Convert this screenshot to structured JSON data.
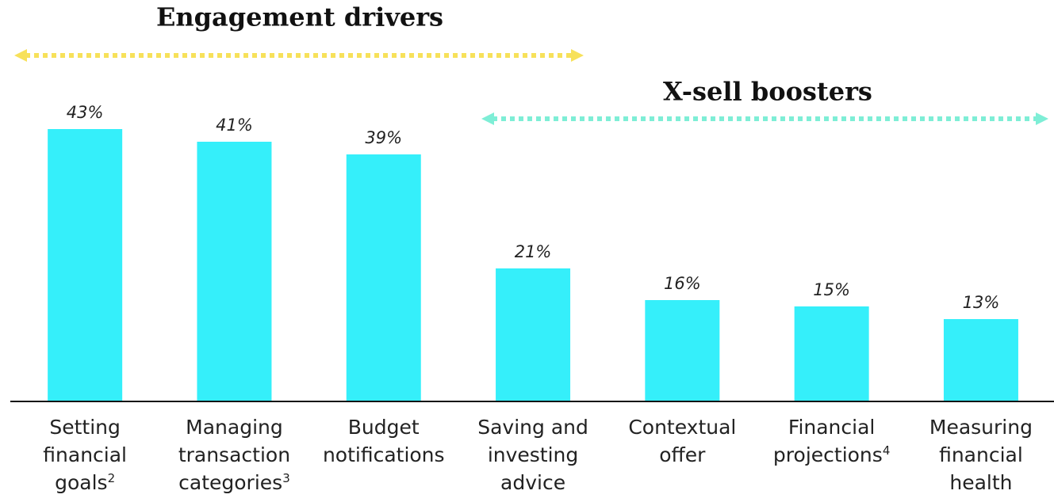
{
  "chart_data": {
    "type": "bar",
    "categories": [
      "Setting\nfinancial\ngoals",
      "Managing\ntransaction\ncategories",
      "Budget\nnotifications",
      "Saving and\ninvesting\nadvice",
      "Contextual\noffer",
      "Financial\nprojections",
      "Measuring\nfinancial\nhealth"
    ],
    "category_superscripts": [
      "2",
      "3",
      null,
      null,
      null,
      "4",
      null
    ],
    "values": [
      43,
      41,
      39,
      21,
      16,
      15,
      13
    ],
    "value_labels": [
      "43%",
      "41%",
      "39%",
      "21%",
      "16%",
      "15%",
      "13%"
    ],
    "color": "#35effa",
    "ylim": [
      0,
      43
    ],
    "annotations": [
      {
        "text": "Engagement drivers",
        "color": "#f7e15a"
      },
      {
        "text": "X-sell boosters",
        "color": "#7eeed6"
      }
    ]
  }
}
